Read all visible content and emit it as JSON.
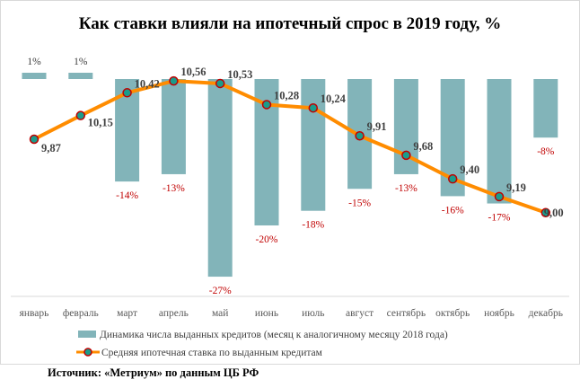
{
  "chart_data": {
    "type": "bar+line",
    "title": "Как ставки влияли на ипотечный спрос в 2019 году, %",
    "categories": [
      "январь",
      "февраль",
      "март",
      "апрель",
      "май",
      "июнь",
      "июль",
      "август",
      "сентябрь",
      "октябрь",
      "ноябрь",
      "декабрь"
    ],
    "series": [
      {
        "name": "Динамика числа выданных кредитов (месяц к аналогичному месяцу 2018 года)",
        "type": "bar",
        "values": [
          1,
          1,
          -14,
          -13,
          -27,
          -20,
          -18,
          -15,
          -13,
          -16,
          -17,
          -8
        ],
        "labels": [
          "1%",
          "1%",
          "-14%",
          "-13%",
          "-27%",
          "-20%",
          "-18%",
          "-15%",
          "-13%",
          "-16%",
          "-17%",
          "-8%"
        ],
        "color": "#82b4b9",
        "negative_label_color": "#c00000"
      },
      {
        "name": "Средняя ипотечная ставка по выданным кредитам",
        "type": "line",
        "values": [
          9.87,
          10.15,
          10.42,
          10.56,
          10.53,
          10.28,
          10.24,
          9.91,
          9.68,
          9.4,
          9.19,
          9.0
        ],
        "labels": [
          "9,87",
          "10,15",
          "10,42",
          "10,56",
          "10,53",
          "10,28",
          "10,24",
          "9,91",
          "9,68",
          "9,40",
          "9,19",
          "9,00"
        ],
        "color": "#ff8c00",
        "marker_fill": "#1a9c8c",
        "marker_edge": "#c00000"
      }
    ],
    "grid": false,
    "legend": "bottom"
  },
  "source": "Источник: «Метриум» по данным ЦБ РФ"
}
